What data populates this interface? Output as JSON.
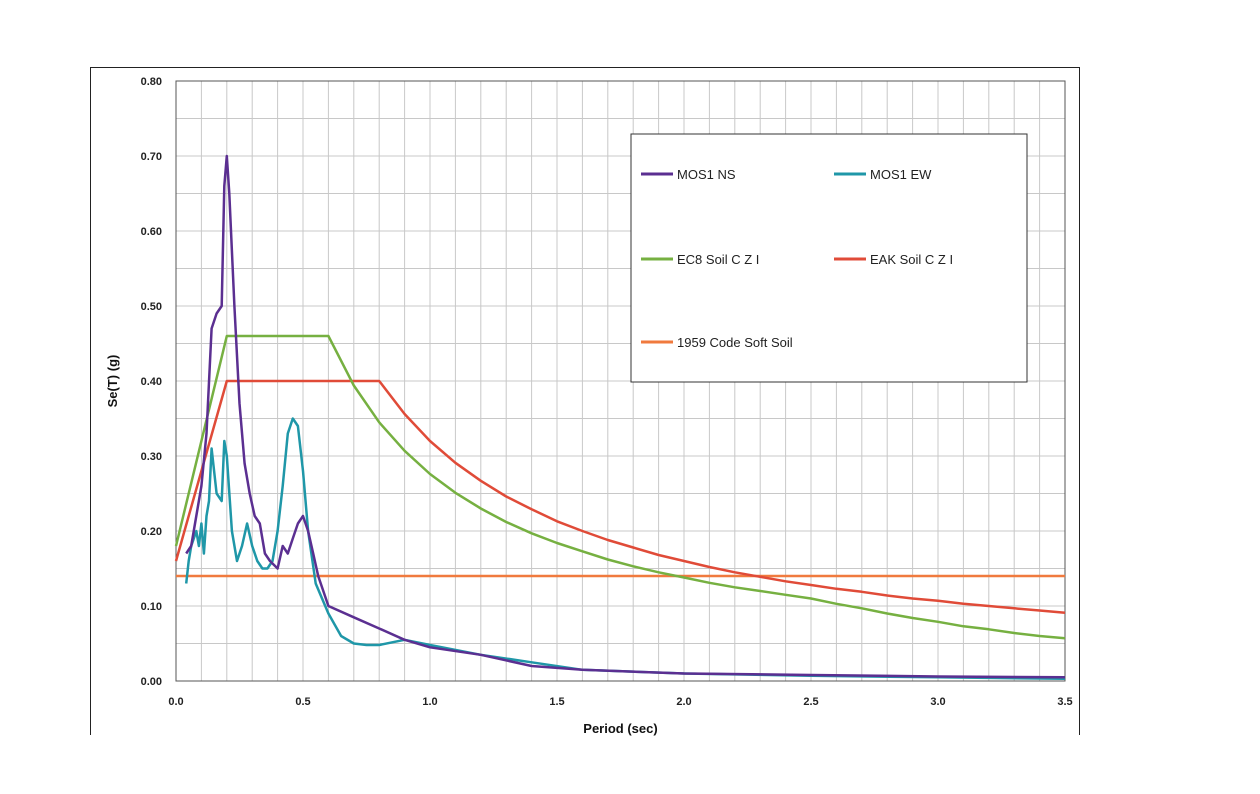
{
  "chart_data": {
    "type": "line",
    "title": "",
    "xlabel": "Period (sec)",
    "ylabel": "Se(T) (g)",
    "xlim": [
      0,
      3.5
    ],
    "ylim": [
      0,
      0.8
    ],
    "x_ticks": [
      "0.0",
      "0.5",
      "1.0",
      "1.5",
      "2.0",
      "2.5",
      "3.0",
      "3.5"
    ],
    "y_ticks": [
      "0.00",
      "0.10",
      "0.20",
      "0.30",
      "0.40",
      "0.50",
      "0.60",
      "0.70",
      "0.80"
    ],
    "grid": true,
    "legend_position": "top-right",
    "series": [
      {
        "name": "MOS1 NS",
        "color": "#5b2f91",
        "x": [
          0.04,
          0.06,
          0.08,
          0.1,
          0.12,
          0.14,
          0.16,
          0.18,
          0.19,
          0.2,
          0.21,
          0.23,
          0.25,
          0.27,
          0.29,
          0.31,
          0.33,
          0.35,
          0.37,
          0.4,
          0.42,
          0.44,
          0.46,
          0.48,
          0.5,
          0.52,
          0.54,
          0.56,
          0.6,
          0.7,
          0.8,
          0.9,
          1.0,
          1.2,
          1.4,
          1.6,
          2.0,
          2.5,
          3.0,
          3.5
        ],
        "y": [
          0.17,
          0.18,
          0.22,
          0.26,
          0.33,
          0.47,
          0.49,
          0.5,
          0.66,
          0.7,
          0.65,
          0.5,
          0.37,
          0.29,
          0.25,
          0.22,
          0.21,
          0.17,
          0.16,
          0.15,
          0.18,
          0.17,
          0.19,
          0.21,
          0.22,
          0.2,
          0.17,
          0.14,
          0.1,
          0.085,
          0.07,
          0.055,
          0.045,
          0.035,
          0.02,
          0.015,
          0.01,
          0.008,
          0.006,
          0.005
        ]
      },
      {
        "name": "MOS1 EW",
        "color": "#1f97a8",
        "x": [
          0.04,
          0.05,
          0.06,
          0.07,
          0.08,
          0.09,
          0.1,
          0.11,
          0.12,
          0.13,
          0.14,
          0.16,
          0.18,
          0.19,
          0.2,
          0.22,
          0.24,
          0.26,
          0.28,
          0.3,
          0.32,
          0.34,
          0.36,
          0.38,
          0.4,
          0.42,
          0.44,
          0.46,
          0.48,
          0.5,
          0.52,
          0.55,
          0.6,
          0.65,
          0.7,
          0.75,
          0.8,
          0.9,
          1.0,
          1.2,
          1.4,
          1.6,
          2.0,
          2.5,
          3.0,
          3.5
        ],
        "y": [
          0.13,
          0.16,
          0.18,
          0.19,
          0.2,
          0.18,
          0.21,
          0.17,
          0.22,
          0.24,
          0.31,
          0.25,
          0.24,
          0.32,
          0.3,
          0.2,
          0.16,
          0.18,
          0.21,
          0.18,
          0.16,
          0.15,
          0.15,
          0.16,
          0.2,
          0.26,
          0.33,
          0.35,
          0.34,
          0.28,
          0.2,
          0.13,
          0.09,
          0.06,
          0.05,
          0.048,
          0.048,
          0.055,
          0.048,
          0.035,
          0.025,
          0.015,
          0.01,
          0.007,
          0.005,
          0.003
        ]
      },
      {
        "name": "EC8 Soil C Z I",
        "color": "#76b041",
        "x": [
          0.0,
          0.2,
          0.6,
          0.7,
          0.8,
          0.9,
          1.0,
          1.1,
          1.2,
          1.3,
          1.4,
          1.5,
          1.6,
          1.7,
          1.8,
          1.9,
          2.0,
          2.1,
          2.2,
          2.3,
          2.4,
          2.5,
          2.6,
          2.7,
          2.8,
          2.9,
          3.0,
          3.1,
          3.2,
          3.3,
          3.4,
          3.5
        ],
        "y": [
          0.18,
          0.46,
          0.46,
          0.394,
          0.345,
          0.307,
          0.276,
          0.251,
          0.23,
          0.212,
          0.197,
          0.184,
          0.173,
          0.162,
          0.153,
          0.145,
          0.138,
          0.131,
          0.125,
          0.12,
          0.115,
          0.11,
          0.103,
          0.097,
          0.09,
          0.084,
          0.079,
          0.073,
          0.069,
          0.064,
          0.06,
          0.057
        ]
      },
      {
        "name": "EAK Soil C Z I",
        "color": "#e04b38",
        "x": [
          0.0,
          0.2,
          0.8,
          0.9,
          1.0,
          1.1,
          1.2,
          1.3,
          1.4,
          1.5,
          1.6,
          1.7,
          1.8,
          1.9,
          2.0,
          2.1,
          2.2,
          2.3,
          2.4,
          2.5,
          2.6,
          2.7,
          2.8,
          2.9,
          3.0,
          3.1,
          3.2,
          3.3,
          3.4,
          3.5
        ],
        "y": [
          0.16,
          0.4,
          0.4,
          0.356,
          0.32,
          0.291,
          0.267,
          0.246,
          0.229,
          0.213,
          0.2,
          0.188,
          0.178,
          0.168,
          0.16,
          0.152,
          0.145,
          0.139,
          0.133,
          0.128,
          0.123,
          0.119,
          0.114,
          0.11,
          0.107,
          0.103,
          0.1,
          0.097,
          0.094,
          0.091
        ]
      },
      {
        "name": "1959 Code Soft Soil",
        "color": "#f07a3e",
        "x": [
          0.0,
          3.5
        ],
        "y": [
          0.14,
          0.14
        ]
      }
    ]
  }
}
